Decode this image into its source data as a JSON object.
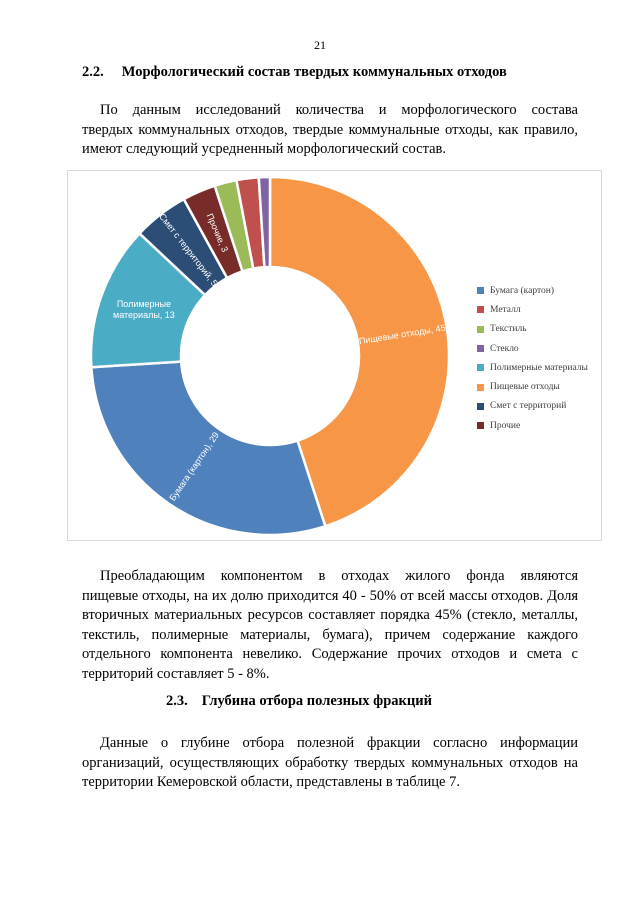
{
  "page_number": "21",
  "section1": {
    "number": "2.2.",
    "title": "Морфологический состав твердых коммунальных отходов"
  },
  "para1": [
    "По данным исследований количества и морфологического состава",
    "твердых коммунальных отходов, твердые коммунальные отходы, как правило,",
    "имеют следующий усредненный морфологический состав."
  ],
  "chart_data": {
    "type": "pie",
    "donut": true,
    "title": "",
    "legend_position": "right",
    "slices": [
      {
        "name": "Пищевые отходы",
        "value": 45,
        "color": "#F79646",
        "label": "Пищевые отходы, 45"
      },
      {
        "name": "Бумага (картон)",
        "value": 29,
        "color": "#4F81BD",
        "label": "Бумага (картон), 29"
      },
      {
        "name": "Полимерные материалы",
        "value": 13,
        "color": "#4BACC6",
        "label": "Полимерные материалы, 13"
      },
      {
        "name": "Смет с территорий",
        "value": 5,
        "color": "#2C4D75",
        "label": "Смет с территорий, 5"
      },
      {
        "name": "Прочие",
        "value": 3,
        "color": "#772C2A",
        "label": "Прочие, 3"
      },
      {
        "name": "Текстиль",
        "value": 2,
        "color": "#9BBB59",
        "label": ""
      },
      {
        "name": "Металл",
        "value": 2,
        "color": "#C0504D",
        "label": ""
      },
      {
        "name": "Стекло",
        "value": 1,
        "color": "#8064A2",
        "label": ""
      }
    ],
    "legend": [
      {
        "name": "Бумага (картон)",
        "color": "#4F81BD"
      },
      {
        "name": "Металл",
        "color": "#C0504D"
      },
      {
        "name": "Текстиль",
        "color": "#9BBB59"
      },
      {
        "name": "Стекло",
        "color": "#8064A2"
      },
      {
        "name": "Полимерные материалы",
        "color": "#4BACC6"
      },
      {
        "name": "Пищевые отходы",
        "color": "#F79646"
      },
      {
        "name": "Смет с территорий",
        "color": "#2C4D75"
      },
      {
        "name": "Прочие",
        "color": "#772C2A"
      }
    ]
  },
  "para2": [
    "Преобладающим компонентом в отходах жилого фонда являются",
    "пищевые отходы, на их долю приходится 40 - 50% от всей массы отходов. Доля",
    "вторичных материальных ресурсов составляет порядка 45% (стекло, металлы,",
    "текстиль, полимерные материалы, бумага), причем содержание каждого",
    "отдельного компонента невелико. Содержание прочих отходов и смета с",
    "территорий составляет 5 - 8%."
  ],
  "section2": {
    "number": "2.3.",
    "title": "Глубина отбора полезных фракций"
  },
  "para3": [
    "Данные о глубине отбора полезной фракции согласно информации",
    "организаций, осуществляющих обработку твердых коммунальных отходов на",
    "территории Кемеровской области, представлены в таблице 7."
  ]
}
